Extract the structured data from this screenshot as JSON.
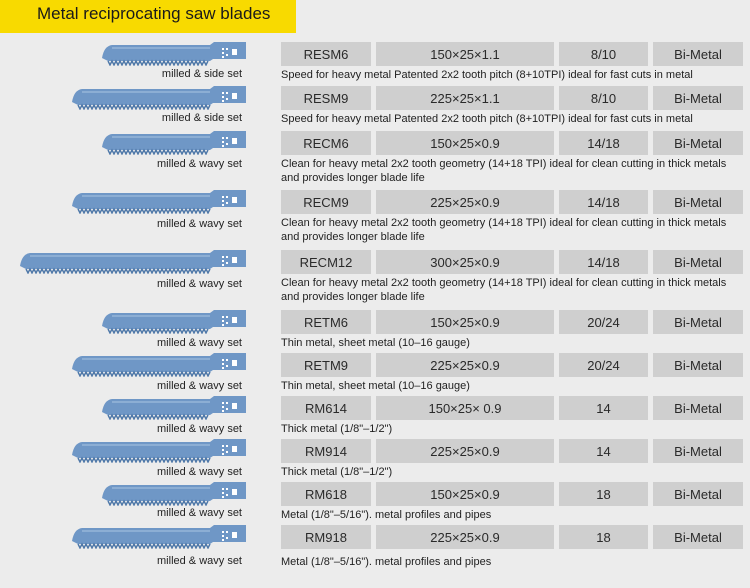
{
  "header": {
    "title": "Metal reciprocating saw blades"
  },
  "colors": {
    "banner": "#f8da00",
    "cell": "#cfcfcf",
    "blade": "#6f97c6",
    "background": "#ececec"
  },
  "rows": [
    {
      "set": "milled & side set",
      "model": "RESM6",
      "size": "150×25×1.1",
      "tpi": "8/10",
      "material": "Bi-Metal",
      "desc": "Speed for heavy metal Patented 2x2 tooth pitch (8+10TPI) ideal for fast cuts in metal"
    },
    {
      "set": "milled & side set",
      "model": "RESM9",
      "size": "225×25×1.1",
      "tpi": "8/10",
      "material": "Bi-Metal",
      "desc": "Speed for heavy metal Patented 2x2 tooth pitch (8+10TPI) ideal for fast cuts in metal"
    },
    {
      "set": "milled & wavy set",
      "model": "RECM6",
      "size": "150×25×0.9",
      "tpi": "14/18",
      "material": "Bi-Metal",
      "desc": "Clean for heavy metal  2x2 tooth geometry (14+18 TPI) ideal for clean cutting in thick metals and provides longer blade life"
    },
    {
      "set": "milled & wavy set",
      "model": "RECM9",
      "size": "225×25×0.9",
      "tpi": "14/18",
      "material": "Bi-Metal",
      "desc": "Clean for heavy metal  2x2 tooth geometry (14+18 TPI) ideal for clean cutting in thick metals and provides longer blade life"
    },
    {
      "set": "milled & wavy set",
      "model": "RECM12",
      "size": "300×25×0.9",
      "tpi": "14/18",
      "material": "Bi-Metal",
      "desc": "Clean for heavy metal  2x2 tooth geometry (14+18 TPI) ideal for clean cutting in thick metals and provides longer blade life"
    },
    {
      "set": "milled & wavy set",
      "model": "RETM6",
      "size": "150×25×0.9",
      "tpi": "20/24",
      "material": "Bi-Metal",
      "desc": "Thin metal, sheet metal (10–16 gauge)"
    },
    {
      "set": "milled & wavy set",
      "model": "RETM9",
      "size": "225×25×0.9",
      "tpi": "20/24",
      "material": "Bi-Metal",
      "desc": "Thin metal, sheet metal (10–16 gauge)"
    },
    {
      "set": "milled & wavy set",
      "model": "RM614",
      "size": "150×25× 0.9",
      "tpi": "14",
      "material": "Bi-Metal",
      "desc": "Thick metal (1/8\"–1/2\")"
    },
    {
      "set": "milled & wavy set",
      "model": "RM914",
      "size": "225×25×0.9",
      "tpi": "14",
      "material": "Bi-Metal",
      "desc": "Thick metal (1/8\"–1/2\")"
    },
    {
      "set": "milled & wavy set",
      "model": "RM618",
      "size": "150×25×0.9",
      "tpi": "18",
      "material": "Bi-Metal",
      "desc": "Metal (1/8\"–5/16\"). metal profiles and pipes"
    },
    {
      "set": "milled & wavy set",
      "model": "RM918",
      "size": "225×25×0.9",
      "tpi": "18",
      "material": "Bi-Metal",
      "desc": "Metal (1/8\"–5/16\"). metal profiles and pipes"
    }
  ]
}
